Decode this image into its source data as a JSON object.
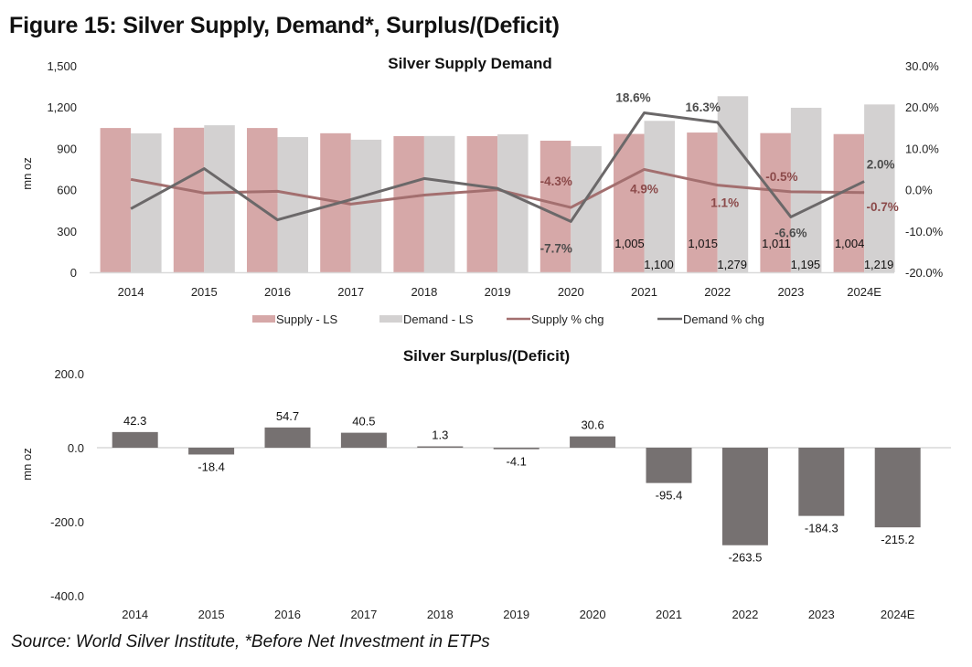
{
  "figure_title": "Figure 15: Silver Supply, Demand*, Surplus/(Deficit)",
  "source": "Source: World Silver Institute, *Before Net Investment in ETPs",
  "colors": {
    "supply_bar": "#d6a8a8",
    "demand_bar": "#d3d1d1",
    "supply_line": "#a36f6f",
    "demand_line": "#6b6869",
    "surplus_bar": "#767171",
    "axis": "#d9d9d9"
  },
  "chart_data": [
    {
      "type": "bar",
      "title": "Silver Supply Demand",
      "categories": [
        "2014",
        "2015",
        "2016",
        "2017",
        "2018",
        "2019",
        "2020",
        "2021",
        "2022",
        "2023",
        "2024E"
      ],
      "ylabel": "mn oz",
      "ylim": [
        0,
        1500
      ],
      "yticks": [
        "0",
        "300",
        "600",
        "900",
        "1,200",
        "1,500"
      ],
      "y2lim": [
        -20,
        30
      ],
      "y2ticks": [
        "-20.0%",
        "-10.0%",
        "0.0%",
        "10.0%",
        "20.0%",
        "30.0%"
      ],
      "grid": false,
      "legend_position": "bottom",
      "series": [
        {
          "name": "Supply - LS",
          "kind": "bar",
          "axis": "left",
          "values": [
            1048,
            1050,
            1048,
            1010,
            989,
            989,
            956,
            1005,
            1015,
            1011,
            1004
          ]
        },
        {
          "name": "Demand - LS",
          "kind": "bar",
          "axis": "left",
          "values": [
            1009,
            1068,
            982,
            963,
            990,
            1002,
            916,
            1100,
            1279,
            1195,
            1219
          ]
        },
        {
          "name": "Supply % chg",
          "kind": "line",
          "axis": "right",
          "values": [
            2.5,
            -0.8,
            -0.4,
            -3.5,
            -1.3,
            0.0,
            -4.3,
            4.9,
            1.1,
            -0.5,
            -0.7
          ]
        },
        {
          "name": "Demand % chg",
          "kind": "line",
          "axis": "right",
          "values": [
            -4.6,
            5.1,
            -7.3,
            -2.4,
            2.7,
            0.3,
            -7.7,
            18.6,
            16.3,
            -6.6,
            2.0
          ]
        }
      ],
      "data_labels": {
        "supply_bars": {
          "2021": "1,005",
          "2022": "1,015",
          "2023": "1,011",
          "2024E": "1,004"
        },
        "demand_bars": {
          "2021": "1,100",
          "2022": "1,279",
          "2023": "1,195",
          "2024E": "1,219"
        },
        "supply_pct": {
          "2020": "-4.3%",
          "2021": "4.9%",
          "2022": "1.1%",
          "2023": "-0.5%",
          "2024E": "-0.7%"
        },
        "demand_pct": {
          "2020": "-7.7%",
          "2021": "18.6%",
          "2022": "16.3%",
          "2023": "-6.6%",
          "2024E": "2.0%"
        }
      }
    },
    {
      "type": "bar",
      "title": "Silver Surplus/(Deficit)",
      "categories": [
        "2014",
        "2015",
        "2016",
        "2017",
        "2018",
        "2019",
        "2020",
        "2021",
        "2022",
        "2023",
        "2024E"
      ],
      "ylabel": "mn oz",
      "ylim": [
        -400,
        200
      ],
      "yticks": [
        "-400.0",
        "-200.0",
        "0.0",
        "200.0"
      ],
      "grid": false,
      "series": [
        {
          "name": "Surplus/(Deficit)",
          "values": [
            42.3,
            -18.4,
            54.7,
            40.5,
            1.3,
            -4.1,
            30.6,
            -95.4,
            -263.5,
            -184.3,
            -215.2
          ]
        }
      ],
      "data_labels": [
        "42.3",
        "-18.4",
        "54.7",
        "40.5",
        "1.3",
        "-4.1",
        "30.6",
        "-95.4",
        "-263.5",
        "-184.3",
        "-215.2"
      ]
    }
  ]
}
